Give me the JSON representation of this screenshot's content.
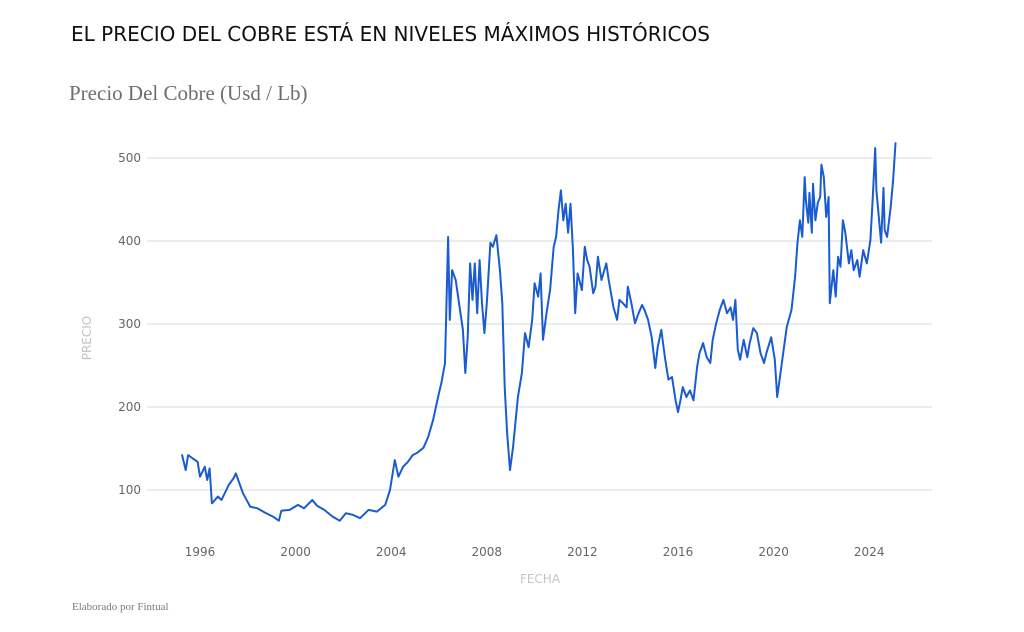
{
  "header": {
    "title": "EL PRECIO DEL COBRE ESTÁ EN NIVELES MÁXIMOS HISTÓRICOS",
    "subtitle": "Precio Del Cobre (Usd / Lb)"
  },
  "footer": {
    "credit": "Elaborado por Fintual"
  },
  "colors": {
    "line": "#1a5ccf",
    "grid": "#d9d9d9",
    "tick_text": "#666666",
    "axis_label": "#c4c4c4"
  },
  "chart_data": {
    "type": "line",
    "title": "Precio Del Cobre (Usd / Lb)",
    "xlabel": "FECHA",
    "ylabel": "PRECIO",
    "xlim": [
      1994.9,
      2026.4
    ],
    "ylim": [
      50,
      520
    ],
    "grid": true,
    "legend": "none",
    "y_ticks": [
      100,
      200,
      300,
      400,
      500
    ],
    "y_tick_labels": [
      "100",
      "200",
      "300",
      "400",
      "500"
    ],
    "x_ticks": [
      1996,
      2000,
      2004,
      2008,
      2012,
      2016,
      2020,
      2024
    ],
    "x_tick_labels": [
      "1996",
      "2000",
      "2004",
      "2008",
      "2012",
      "2016",
      "2020",
      "2024"
    ],
    "series": [
      {
        "name": "Precio del cobre",
        "x": [
          1995.25,
          1995.4,
          1995.5,
          1995.7,
          1995.9,
          1996.0,
          1996.2,
          1996.3,
          1996.4,
          1996.5,
          1996.75,
          1996.9,
          1997.2,
          1997.4,
          1997.5,
          1997.6,
          1997.8,
          1998.1,
          1998.4,
          1998.7,
          1999.05,
          1999.3,
          1999.4,
          1999.75,
          2000.1,
          2000.35,
          2000.7,
          2000.9,
          2001.2,
          2001.55,
          2001.85,
          2002.1,
          2002.4,
          2002.7,
          2003.05,
          2003.4,
          2003.75,
          2003.95,
          2004.15,
          2004.3,
          2004.5,
          2004.7,
          2004.9,
          2005.1,
          2005.35,
          2005.55,
          2005.75,
          2006.0,
          2006.1,
          2006.25,
          2006.33,
          2006.38,
          2006.45,
          2006.55,
          2006.7,
          2006.8,
          2007.0,
          2007.1,
          2007.2,
          2007.3,
          2007.4,
          2007.5,
          2007.6,
          2007.7,
          2007.8,
          2007.9,
          2008.0,
          2008.15,
          2008.25,
          2008.4,
          2008.55,
          2008.65,
          2008.75,
          2008.85,
          2008.97,
          2009.1,
          2009.3,
          2009.47,
          2009.6,
          2009.75,
          2009.9,
          2010.0,
          2010.15,
          2010.25,
          2010.35,
          2010.5,
          2010.65,
          2010.8,
          2010.9,
          2011.0,
          2011.1,
          2011.2,
          2011.3,
          2011.4,
          2011.5,
          2011.6,
          2011.7,
          2011.8,
          2011.98,
          2012.1,
          2012.2,
          2012.3,
          2012.45,
          2012.55,
          2012.65,
          2012.8,
          2013.0,
          2013.1,
          2013.3,
          2013.45,
          2013.55,
          2013.7,
          2013.85,
          2013.9,
          2014.05,
          2014.2,
          2014.35,
          2014.5,
          2014.6,
          2014.75,
          2014.9,
          2015.05,
          2015.15,
          2015.3,
          2015.45,
          2015.6,
          2015.75,
          2015.9,
          2016.0,
          2016.1,
          2016.2,
          2016.35,
          2016.5,
          2016.65,
          2016.8,
          2016.9,
          2017.05,
          2017.2,
          2017.35,
          2017.45,
          2017.6,
          2017.75,
          2017.9,
          2018.05,
          2018.2,
          2018.3,
          2018.4,
          2018.5,
          2018.6,
          2018.75,
          2018.9,
          2019.0,
          2019.15,
          2019.3,
          2019.45,
          2019.6,
          2019.7,
          2019.9,
          2020.05,
          2020.15,
          2020.25,
          2020.4,
          2020.55,
          2020.75,
          2020.9,
          2021.0,
          2021.1,
          2021.2,
          2021.3,
          2021.35,
          2021.45,
          2021.5,
          2021.6,
          2021.65,
          2021.75,
          2021.85,
          2021.95,
          2022.0,
          2022.1,
          2022.2,
          2022.3,
          2022.35,
          2022.5,
          2022.6,
          2022.7,
          2022.8,
          2022.9,
          2023.0,
          2023.15,
          2023.25,
          2023.35,
          2023.5,
          2023.6,
          2023.75,
          2023.9,
          2024.05,
          2024.15,
          2024.25,
          2024.3,
          2024.4,
          2024.5,
          2024.6,
          2024.65,
          2024.75,
          2024.9,
          2025.0,
          2025.1
        ],
        "y": [
          142,
          124,
          142,
          138,
          134,
          116,
          128,
          112,
          126,
          84,
          92,
          88,
          106,
          114,
          120,
          112,
          96,
          80,
          78,
          73,
          68,
          63,
          75,
          76,
          82,
          78,
          88,
          81,
          76,
          68,
          63,
          72,
          70,
          66,
          76,
          74,
          82,
          100,
          136,
          116,
          128,
          134,
          142,
          145,
          151,
          164,
          184,
          217,
          229,
          253,
          345,
          405,
          305,
          365,
          353,
          333,
          293,
          241,
          284,
          373,
          329,
          373,
          313,
          377,
          325,
          289,
          325,
          398,
          393,
          407,
          365,
          325,
          224,
          169,
          124,
          152,
          212,
          241,
          289,
          272,
          305,
          349,
          333,
          361,
          281,
          313,
          341,
          393,
          405,
          437,
          461,
          425,
          445,
          410,
          445,
          393,
          313,
          361,
          341,
          393,
          377,
          369,
          337,
          345,
          381,
          353,
          373,
          353,
          320,
          305,
          329,
          325,
          320,
          345,
          325,
          301,
          313,
          323,
          317,
          305,
          284,
          247,
          272,
          293,
          260,
          233,
          236,
          208,
          194,
          208,
          224,
          212,
          220,
          208,
          248,
          265,
          277,
          260,
          253,
          281,
          301,
          317,
          329,
          313,
          320,
          305,
          329,
          269,
          257,
          281,
          260,
          277,
          295,
          289,
          265,
          253,
          265,
          284,
          257,
          212,
          233,
          265,
          296,
          317,
          357,
          398,
          425,
          405,
          477,
          449,
          422,
          458,
          410,
          469,
          425,
          446,
          453,
          492,
          477,
          429,
          453,
          325,
          365,
          333,
          381,
          369,
          425,
          410,
          373,
          389,
          365,
          377,
          357,
          389,
          373,
          401,
          453,
          512,
          461,
          429,
          398,
          464,
          413,
          405,
          441,
          473,
          518
        ]
      }
    ]
  }
}
